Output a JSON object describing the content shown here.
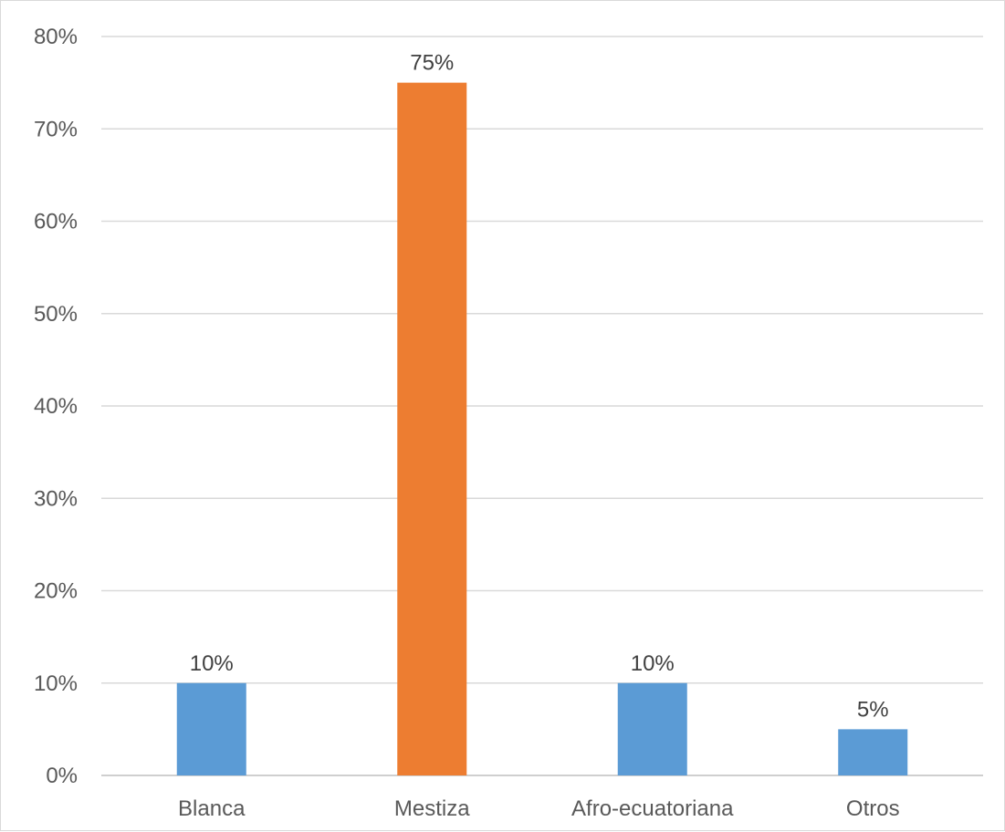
{
  "chart_data": {
    "type": "bar",
    "title": "",
    "xlabel": "",
    "ylabel": "",
    "categories": [
      "Blanca",
      "Mestiza",
      "Afro-ecuatoriana",
      "Otros"
    ],
    "values": [
      10,
      75,
      10,
      5
    ],
    "data_labels": [
      "10%",
      "75%",
      "10%",
      "5%"
    ],
    "bar_colors": [
      "#5b9bd5",
      "#ed7d31",
      "#5b9bd5",
      "#5b9bd5"
    ],
    "ylim": [
      0,
      80
    ],
    "y_ticks": [
      0,
      10,
      20,
      30,
      40,
      50,
      60,
      70,
      80
    ],
    "y_tick_labels": [
      "0%",
      "10%",
      "20%",
      "30%",
      "40%",
      "50%",
      "60%",
      "70%",
      "80%"
    ],
    "grid": true,
    "legend": "none"
  }
}
